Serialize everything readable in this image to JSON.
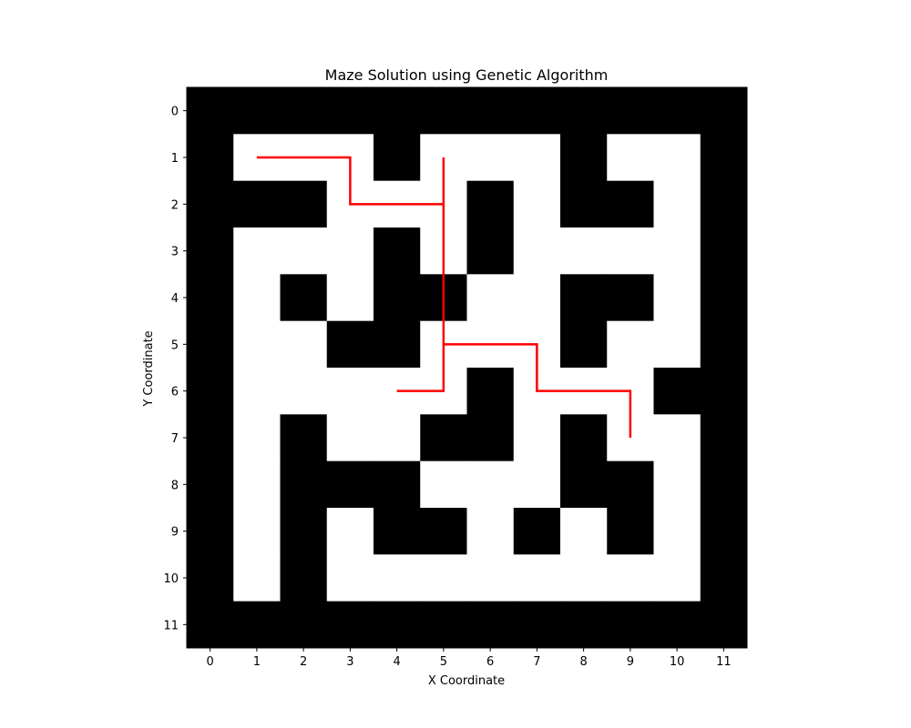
{
  "chart_data": {
    "type": "heatmap",
    "title": "Maze Solution using Genetic Algorithm",
    "xlabel": "X Coordinate",
    "ylabel": "Y Coordinate",
    "xticks": [
      "0",
      "1",
      "2",
      "3",
      "4",
      "5",
      "6",
      "7",
      "8",
      "9",
      "10",
      "11"
    ],
    "yticks": [
      "0",
      "1",
      "2",
      "3",
      "4",
      "5",
      "6",
      "7",
      "8",
      "9",
      "10",
      "11"
    ],
    "xlim": [
      -0.5,
      11.5
    ],
    "ylim": [
      11.5,
      -0.5
    ],
    "grid": false,
    "cell_values": {
      "1": "wall",
      "0": "open"
    },
    "maze": [
      [
        1,
        1,
        1,
        1,
        1,
        1,
        1,
        1,
        1,
        1,
        1,
        1
      ],
      [
        1,
        0,
        0,
        0,
        1,
        0,
        0,
        0,
        1,
        0,
        0,
        1
      ],
      [
        1,
        1,
        1,
        0,
        0,
        0,
        1,
        0,
        1,
        1,
        0,
        1
      ],
      [
        1,
        0,
        0,
        0,
        1,
        0,
        1,
        0,
        0,
        0,
        0,
        1
      ],
      [
        1,
        0,
        1,
        0,
        1,
        1,
        0,
        0,
        1,
        1,
        0,
        1
      ],
      [
        1,
        0,
        0,
        1,
        1,
        0,
        0,
        0,
        1,
        0,
        0,
        1
      ],
      [
        1,
        0,
        0,
        0,
        0,
        0,
        1,
        0,
        0,
        0,
        1,
        1
      ],
      [
        1,
        0,
        1,
        0,
        0,
        1,
        1,
        0,
        1,
        0,
        0,
        1
      ],
      [
        1,
        0,
        1,
        1,
        1,
        0,
        0,
        0,
        1,
        1,
        0,
        1
      ],
      [
        1,
        0,
        1,
        0,
        1,
        1,
        0,
        1,
        0,
        1,
        0,
        1
      ],
      [
        1,
        0,
        1,
        0,
        0,
        0,
        0,
        0,
        0,
        0,
        0,
        1
      ],
      [
        1,
        1,
        1,
        1,
        1,
        1,
        1,
        1,
        1,
        1,
        1,
        1
      ]
    ],
    "colors": {
      "wall": "#000000",
      "open": "#ffffff",
      "path": "#ff0000"
    },
    "series": [
      {
        "points": [
          [
            1,
            1
          ],
          [
            3,
            1
          ],
          [
            3,
            2
          ],
          [
            5,
            2
          ],
          [
            5,
            1
          ],
          [
            5,
            6
          ],
          [
            4,
            6
          ],
          [
            5,
            6
          ],
          [
            5,
            5
          ],
          [
            7,
            5
          ],
          [
            7,
            6
          ],
          [
            9,
            6
          ],
          [
            9,
            7
          ]
        ]
      }
    ]
  }
}
